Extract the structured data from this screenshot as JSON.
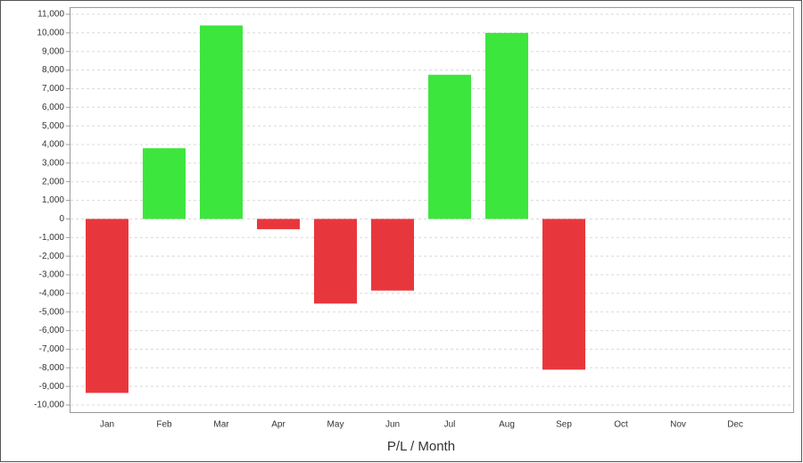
{
  "chart_data": {
    "type": "bar",
    "x_label": "P/L / Month",
    "categories": [
      "Jan",
      "Feb",
      "Mar",
      "Apr",
      "May",
      "Jun",
      "Jul",
      "Aug",
      "Sep",
      "Oct",
      "Nov",
      "Dec"
    ],
    "values": [
      -9350,
      3800,
      10400,
      -550,
      -4550,
      -3850,
      7750,
      10000,
      -8100,
      null,
      null,
      null
    ],
    "positive_color": "#3de63d",
    "negative_color": "#e8373c",
    "ylim": [
      -10500,
      11000
    ],
    "yticks": [
      {
        "value": -10000,
        "label": "-10,000"
      },
      {
        "value": -9000,
        "label": "-9,000"
      },
      {
        "value": -8000,
        "label": "-8,000"
      },
      {
        "value": -7000,
        "label": "-7,000"
      },
      {
        "value": -6000,
        "label": "-6,000"
      },
      {
        "value": -5000,
        "label": "-5,000"
      },
      {
        "value": -4000,
        "label": "-4,000"
      },
      {
        "value": -3000,
        "label": "-3,000"
      },
      {
        "value": -2000,
        "label": "-2,000"
      },
      {
        "value": -1000,
        "label": "-1,000"
      },
      0,
      {
        "value": 1000,
        "label": "1,000"
      },
      {
        "value": 2000,
        "label": "2,000"
      },
      {
        "value": 3000,
        "label": "3,000"
      },
      {
        "value": 4000,
        "label": "4,000"
      },
      {
        "value": 5000,
        "label": "5,000"
      },
      {
        "value": 6000,
        "label": "6,000"
      },
      {
        "value": 7000,
        "label": "7,000"
      },
      {
        "value": 8000,
        "label": "8,000"
      },
      {
        "value": 9000,
        "label": "9,000"
      },
      {
        "value": 10000,
        "label": "10,000"
      },
      {
        "value": 11000,
        "label": "11,000"
      }
    ],
    "grid": true
  }
}
